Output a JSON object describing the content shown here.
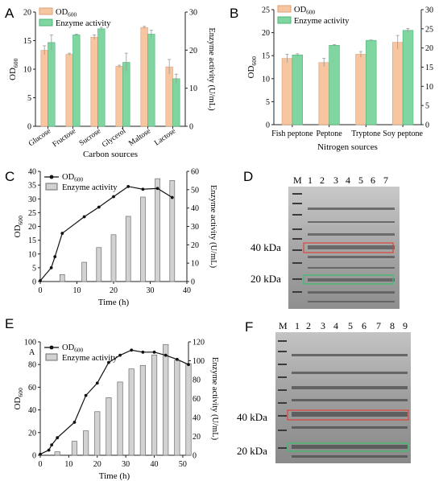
{
  "colors": {
    "od_bar": "#f7c59f",
    "od_bar_stroke": "#d9a27a",
    "enzyme_bar": "#7fd6a0",
    "enzyme_bar_stroke": "#4eb47a",
    "gray_bar": "#d2d2d2",
    "gray_bar_stroke": "#6e6e6e",
    "line": "#111111",
    "gel_bg": "#a9a9a9",
    "box_red": "#e0443a",
    "box_green": "#37c06a"
  },
  "panels": {
    "A": {
      "letter": "A"
    },
    "B": {
      "letter": "B"
    },
    "C": {
      "letter": "C"
    },
    "D": {
      "letter": "D"
    },
    "E": {
      "letter": "E",
      "inner_label": "A"
    },
    "F": {
      "letter": "F"
    }
  },
  "chart_data": [
    {
      "id": "A",
      "type": "bar",
      "categories": [
        "Glucose",
        "Fructose",
        "Sucrose",
        "Glycerol",
        "Maltose",
        "Lactose"
      ],
      "xlabel": "Carbon sources",
      "ylabel": "OD600",
      "ylabel_right": "Enzyme activity (U/mL)",
      "ylim": [
        0,
        20
      ],
      "yticks": [
        "0",
        "5",
        "10",
        "15",
        "20"
      ],
      "ylim_right": [
        0,
        30
      ],
      "yticks_right": [
        "0",
        "10",
        "20",
        "30"
      ],
      "legend_position": "top-left",
      "series": [
        {
          "name": "OD600",
          "axis": "left",
          "values": [
            13.3,
            12.6,
            15.6,
            10.5,
            17.3,
            10.4
          ],
          "errors": [
            0.8,
            0.2,
            0.4,
            0.2,
            0.2,
            1.3
          ]
        },
        {
          "name": "Enzyme activity",
          "axis": "right",
          "values": [
            22.0,
            24.0,
            25.6,
            16.8,
            24.2,
            12.5
          ],
          "errors": [
            2.0,
            0.2,
            0.4,
            2.4,
            1.0,
            1.2
          ]
        }
      ]
    },
    {
      "id": "B",
      "type": "bar",
      "categories": [
        "Fish peptone",
        "Peptone",
        "Tryptone",
        "Soy peptone"
      ],
      "xlabel": "Nitrogen sources",
      "ylabel": "OD600",
      "ylabel_right": "Enzyme activity (U/mL)",
      "ylim": [
        0,
        25
      ],
      "yticks": [
        "0",
        "5",
        "10",
        "15",
        "20",
        "25"
      ],
      "ylim_right": [
        0,
        30
      ],
      "yticks_right": [
        "0",
        "5",
        "10",
        "15",
        "20",
        "25",
        "30"
      ],
      "legend_position": "top-left",
      "series": [
        {
          "name": "OD600",
          "axis": "left",
          "values": [
            14.4,
            13.5,
            15.3,
            17.9
          ],
          "errors": [
            0.9,
            0.9,
            0.6,
            1.5
          ]
        },
        {
          "name": "Enzyme activity",
          "axis": "right",
          "values": [
            18.2,
            20.7,
            22.0,
            24.6
          ],
          "errors": [
            0.3,
            0.2,
            0.1,
            0.5
          ]
        }
      ]
    },
    {
      "id": "C",
      "type": "line+bar",
      "xlabel": "Time (h)",
      "ylabel": "OD600",
      "ylabel_right": "Enzyme activity (U/mL)",
      "xlim": [
        0,
        40
      ],
      "xticks": [
        "0",
        "10",
        "20",
        "30",
        "40"
      ],
      "ylim": [
        0,
        40
      ],
      "yticks": [
        "0",
        "5",
        "10",
        "15",
        "20",
        "25",
        "30",
        "35",
        "40"
      ],
      "ylim_right": [
        0,
        60
      ],
      "yticks_right": [
        "0",
        "10",
        "20",
        "30",
        "40",
        "50",
        "60"
      ],
      "legend_position": "top-left",
      "line": {
        "name": "OD600",
        "x": [
          0,
          3,
          4,
          6,
          12,
          16,
          20,
          24,
          28,
          32,
          36
        ],
        "y": [
          0.3,
          5,
          9,
          17.5,
          23.5,
          27,
          30.8,
          34.5,
          33.5,
          33.8,
          30.5
        ]
      },
      "bars": {
        "name": "Enzyme activity",
        "x": [
          0,
          6,
          12,
          16,
          20,
          24,
          28,
          32,
          36
        ],
        "y": [
          0,
          3.8,
          10.5,
          18.5,
          25.5,
          35.5,
          46,
          56,
          55
        ]
      }
    },
    {
      "id": "E",
      "type": "line+bar",
      "xlabel": "Time (h)",
      "ylabel": "OD600",
      "ylabel_right": "Enzyme activity (U/mL)",
      "xlim": [
        0,
        52
      ],
      "xticks": [
        "0",
        "10",
        "20",
        "30",
        "40",
        "50"
      ],
      "ylim": [
        0,
        110
      ],
      "yticks": [
        "0",
        "20",
        "40",
        "60",
        "80",
        "100"
      ],
      "ylim_right": [
        0,
        130
      ],
      "yticks_right": [
        "0",
        "20",
        "40",
        "60",
        "80",
        "100",
        "120"
      ],
      "legend_position": "top-left",
      "line": {
        "name": "OD600",
        "x": [
          0,
          3,
          4,
          6,
          12,
          16,
          20,
          24,
          28,
          32,
          36,
          40,
          44,
          48,
          52
        ],
        "y": [
          1,
          5,
          10,
          17,
          32,
          58,
          70,
          90,
          97,
          102,
          100,
          100,
          97,
          93,
          88
        ]
      },
      "bars": {
        "name": "Enzyme activity",
        "x": [
          0,
          6,
          12,
          16,
          20,
          24,
          28,
          32,
          36,
          40,
          44,
          48,
          52
        ],
        "y": [
          0,
          4,
          16,
          28,
          50,
          66,
          84,
          99,
          103,
          115,
          127,
          109,
          105
        ]
      }
    }
  ],
  "gels": {
    "D": {
      "lane_labels": [
        "M",
        "1",
        "2",
        "3",
        "4",
        "5",
        "6",
        "7"
      ],
      "markers": [
        "40 kDa",
        "20 kDa"
      ]
    },
    "F": {
      "lane_labels": [
        "M",
        "1",
        "2",
        "3",
        "4",
        "5",
        "6",
        "7",
        "8",
        "9"
      ],
      "markers": [
        "40 kDa",
        "20 kDa"
      ]
    }
  }
}
